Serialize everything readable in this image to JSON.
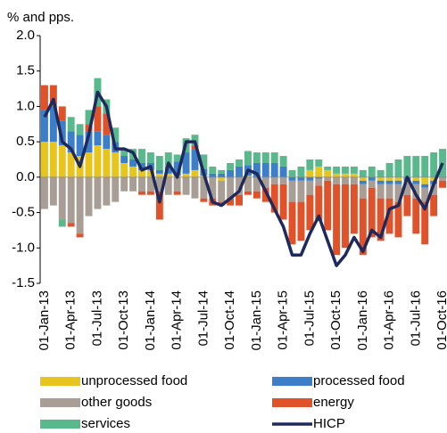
{
  "chart_data": {
    "type": "bar",
    "y_label": "% and pps.",
    "categories": [
      "01-Jan-13",
      null,
      null,
      "01-Apr-13",
      null,
      null,
      "01-Jul-13",
      null,
      null,
      "01-Oct-13",
      null,
      null,
      "01-Jan-14",
      null,
      null,
      "01-Apr-14",
      null,
      null,
      "01-Jul-14",
      null,
      null,
      "01-Oct-14",
      null,
      null,
      "01-Jan-15",
      null,
      null,
      "01-Apr-15",
      null,
      null,
      "01-Jul-15",
      null,
      null,
      "01-Oct-15",
      null,
      null,
      "01-Jan-16",
      null,
      null,
      "01-Apr-16",
      null,
      null,
      "01-Jul-16",
      null,
      null,
      "01-Oct-16"
    ],
    "ylim": [
      -1.5,
      2.0
    ],
    "yticks": [
      {
        "value": 2.0,
        "label": "2.0"
      },
      1.5,
      {
        "value": 1.0,
        "label": "1.0"
      },
      0.5,
      {
        "value": 0.0,
        "label": "0.0"
      },
      -0.5,
      {
        "value": -1.0,
        "label": "-1.0"
      },
      -1.5
    ],
    "series": [
      {
        "name": "unprocessed food",
        "type": "bar",
        "color": "#e8c41e",
        "values": [
          0.5,
          0.5,
          0.45,
          0.35,
          0.3,
          0.35,
          0.45,
          0.4,
          0.35,
          0.2,
          0.15,
          0.1,
          0.1,
          0.05,
          0.05,
          0.02,
          0.05,
          0.1,
          0.02,
          0.0,
          -0.05,
          0.0,
          0.0,
          0.02,
          0.0,
          0.0,
          0.0,
          0.0,
          0.0,
          0.0,
          0.1,
          0.15,
          0.1,
          0.05,
          0.05,
          0.05,
          -0.05,
          0.0,
          -0.05,
          -0.05,
          -0.05,
          0.0,
          -0.05,
          -0.1,
          -0.05,
          0.0
        ]
      },
      {
        "name": "processed food",
        "type": "bar",
        "color": "#3c7fc8",
        "values": [
          0.45,
          0.5,
          0.35,
          0.3,
          0.3,
          0.3,
          0.2,
          0.2,
          0.15,
          0.1,
          0.1,
          0.1,
          0.1,
          0.05,
          0.1,
          0.2,
          0.3,
          0.3,
          0.1,
          0.05,
          0.05,
          0.1,
          0.15,
          0.15,
          0.2,
          0.2,
          0.2,
          0.15,
          -0.05,
          -0.05,
          -0.05,
          -0.02,
          0.0,
          0.0,
          0.0,
          0.0,
          -0.05,
          -0.05,
          -0.05,
          -0.05,
          -0.05,
          -0.05,
          -0.05,
          -0.05,
          -0.05,
          0.0
        ]
      },
      {
        "name": "other goods",
        "type": "bar",
        "color": "#a89e96",
        "values": [
          -0.45,
          -0.4,
          -0.6,
          -0.65,
          -0.8,
          -0.55,
          -0.45,
          -0.4,
          -0.35,
          -0.2,
          -0.2,
          -0.2,
          -0.2,
          -0.2,
          -0.25,
          -0.2,
          -0.25,
          -0.3,
          -0.3,
          -0.3,
          -0.3,
          -0.3,
          -0.25,
          -0.2,
          -0.2,
          -0.15,
          -0.1,
          -0.1,
          -0.3,
          -0.3,
          -0.2,
          -0.1,
          -0.05,
          -0.1,
          -0.1,
          -0.1,
          -0.2,
          -0.1,
          -0.2,
          -0.2,
          -0.25,
          -0.2,
          -0.2,
          -0.2,
          -0.15,
          -0.05
        ]
      },
      {
        "name": "energy",
        "type": "bar",
        "color": "#e0522a",
        "values": [
          0.35,
          0.3,
          0.2,
          -0.05,
          -0.05,
          0.1,
          0.35,
          0.3,
          0.0,
          0.0,
          0.0,
          -0.05,
          -0.05,
          -0.4,
          0.0,
          -0.05,
          0.0,
          0.05,
          -0.05,
          -0.1,
          -0.05,
          -0.1,
          -0.15,
          -0.05,
          -0.1,
          -0.2,
          -0.4,
          -0.5,
          -0.6,
          -0.55,
          -0.5,
          -0.5,
          -0.7,
          -1.0,
          -0.9,
          -0.7,
          -0.8,
          -0.7,
          -0.6,
          -0.5,
          -0.5,
          -0.3,
          -0.5,
          -0.6,
          -0.3,
          -0.1
        ]
      },
      {
        "name": "services",
        "type": "bar",
        "color": "#5ab98c",
        "values": [
          0.0,
          0.0,
          -0.1,
          0.2,
          0.15,
          0.2,
          0.4,
          0.2,
          0.2,
          0.1,
          0.15,
          0.2,
          0.15,
          0.2,
          0.2,
          0.1,
          0.2,
          0.15,
          0.2,
          0.1,
          0.05,
          0.1,
          0.1,
          0.2,
          0.15,
          0.15,
          0.15,
          0.15,
          0.1,
          0.15,
          0.15,
          0.1,
          0.05,
          0.1,
          0.1,
          0.1,
          0.1,
          0.15,
          0.1,
          0.2,
          0.25,
          0.3,
          0.3,
          0.3,
          0.35,
          0.4
        ]
      },
      {
        "name": "HICP",
        "type": "line",
        "color": "#1f2a5c",
        "values": [
          0.85,
          1.1,
          0.5,
          0.4,
          0.15,
          0.6,
          1.2,
          1.0,
          0.4,
          0.4,
          0.35,
          0.1,
          0.15,
          -0.35,
          0.2,
          0.0,
          0.5,
          0.5,
          0.05,
          -0.35,
          -0.4,
          -0.3,
          -0.2,
          0.1,
          0.05,
          -0.2,
          -0.45,
          -0.7,
          -1.1,
          -1.1,
          -0.8,
          -0.55,
          -0.9,
          -1.25,
          -1.1,
          -0.85,
          -1.05,
          -0.75,
          -0.85,
          -0.45,
          -0.4,
          0.0,
          -0.25,
          -0.45,
          -0.1,
          0.2
        ]
      }
    ]
  }
}
